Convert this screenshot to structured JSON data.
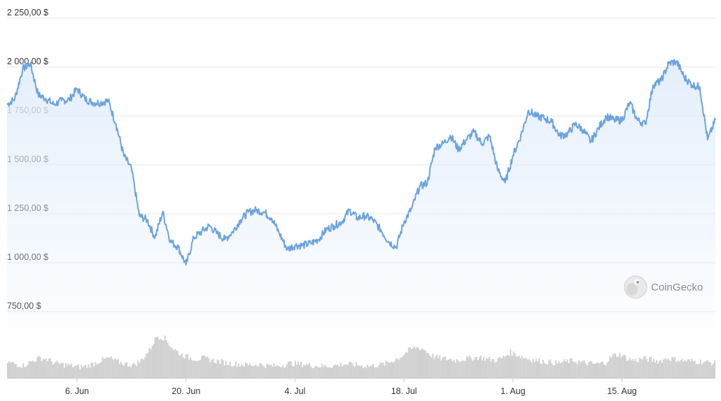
{
  "chart_data": {
    "type": "area",
    "ylim": [
      700,
      2300
    ],
    "y_ticks": [
      {
        "value": 2250,
        "label": "2 250,00 $"
      },
      {
        "value": 2000,
        "label": "2 000,00 $"
      },
      {
        "value": 1750,
        "label": "1 750,00 $"
      },
      {
        "value": 1500,
        "label": "1 500,00 $"
      },
      {
        "value": 1250,
        "label": "1 250,00 $"
      },
      {
        "value": 1000,
        "label": "1 000,00 $"
      },
      {
        "value": 750,
        "label": "750,00 $"
      }
    ],
    "x_ticks": [
      {
        "date": "2022-06-06",
        "label": "6. Jun"
      },
      {
        "date": "2022-06-20",
        "label": "20. Jun"
      },
      {
        "date": "2022-07-04",
        "label": "4. Jul"
      },
      {
        "date": "2022-07-18",
        "label": "18. Jul"
      },
      {
        "date": "2022-08-01",
        "label": "1. Aug"
      },
      {
        "date": "2022-08-15",
        "label": "15. Aug"
      }
    ],
    "x_range": [
      "2022-05-28",
      "2022-08-27"
    ],
    "grid": true,
    "line_color": "#6aa3e0",
    "fill_color": "#e3eefb",
    "volume_color": "#d0d0d0",
    "series": [
      {
        "values": [
          [
            "2022-05-28",
            1780
          ],
          [
            "2022-05-29",
            1810
          ],
          [
            "2022-05-30",
            1960
          ],
          [
            "2022-05-31",
            1990
          ],
          [
            "2022-06-01",
            1830
          ],
          [
            "2022-06-02",
            1810
          ],
          [
            "2022-06-03",
            1780
          ],
          [
            "2022-06-04",
            1800
          ],
          [
            "2022-06-05",
            1805
          ],
          [
            "2022-06-06",
            1860
          ],
          [
            "2022-06-07",
            1810
          ],
          [
            "2022-06-08",
            1790
          ],
          [
            "2022-06-09",
            1790
          ],
          [
            "2022-06-10",
            1800
          ],
          [
            "2022-06-11",
            1680
          ],
          [
            "2022-06-12",
            1520
          ],
          [
            "2022-06-13",
            1450
          ],
          [
            "2022-06-14",
            1210
          ],
          [
            "2022-06-15",
            1190
          ],
          [
            "2022-06-16",
            1100
          ],
          [
            "2022-06-17",
            1230
          ],
          [
            "2022-06-18",
            1080
          ],
          [
            "2022-06-19",
            1050
          ],
          [
            "2022-06-20",
            960
          ],
          [
            "2022-06-21",
            1100
          ],
          [
            "2022-06-22",
            1130
          ],
          [
            "2022-06-23",
            1160
          ],
          [
            "2022-06-24",
            1120
          ],
          [
            "2022-06-25",
            1090
          ],
          [
            "2022-06-26",
            1130
          ],
          [
            "2022-06-27",
            1190
          ],
          [
            "2022-06-28",
            1230
          ],
          [
            "2022-06-29",
            1240
          ],
          [
            "2022-06-30",
            1230
          ],
          [
            "2022-07-01",
            1200
          ],
          [
            "2022-07-02",
            1120
          ],
          [
            "2022-07-03",
            1040
          ],
          [
            "2022-07-04",
            1060
          ],
          [
            "2022-07-05",
            1060
          ],
          [
            "2022-07-06",
            1070
          ],
          [
            "2022-07-07",
            1090
          ],
          [
            "2022-07-08",
            1140
          ],
          [
            "2022-07-09",
            1160
          ],
          [
            "2022-07-10",
            1180
          ],
          [
            "2022-07-11",
            1240
          ],
          [
            "2022-07-12",
            1200
          ],
          [
            "2022-07-13",
            1210
          ],
          [
            "2022-07-14",
            1190
          ],
          [
            "2022-07-15",
            1140
          ],
          [
            "2022-07-16",
            1080
          ],
          [
            "2022-07-17",
            1050
          ],
          [
            "2022-07-18",
            1180
          ],
          [
            "2022-07-19",
            1250
          ],
          [
            "2022-07-20",
            1360
          ],
          [
            "2022-07-21",
            1380
          ],
          [
            "2022-07-22",
            1560
          ],
          [
            "2022-07-23",
            1580
          ],
          [
            "2022-07-24",
            1620
          ],
          [
            "2022-07-25",
            1550
          ],
          [
            "2022-07-26",
            1600
          ],
          [
            "2022-07-27",
            1640
          ],
          [
            "2022-07-28",
            1580
          ],
          [
            "2022-07-29",
            1620
          ],
          [
            "2022-07-30",
            1450
          ],
          [
            "2022-07-31",
            1380
          ],
          [
            "2022-08-01",
            1520
          ],
          [
            "2022-08-02",
            1620
          ],
          [
            "2022-08-03",
            1750
          ],
          [
            "2022-08-04",
            1720
          ],
          [
            "2022-08-05",
            1710
          ],
          [
            "2022-08-06",
            1690
          ],
          [
            "2022-08-07",
            1620
          ],
          [
            "2022-08-08",
            1630
          ],
          [
            "2022-08-09",
            1680
          ],
          [
            "2022-08-10",
            1650
          ],
          [
            "2022-08-11",
            1590
          ],
          [
            "2022-08-12",
            1660
          ],
          [
            "2022-08-13",
            1720
          ],
          [
            "2022-08-14",
            1700
          ],
          [
            "2022-08-15",
            1700
          ],
          [
            "2022-08-16",
            1790
          ],
          [
            "2022-08-17",
            1700
          ],
          [
            "2022-08-18",
            1680
          ],
          [
            "2022-08-19",
            1880
          ],
          [
            "2022-08-20",
            1900
          ],
          [
            "2022-08-21",
            1990
          ],
          [
            "2022-08-22",
            2000
          ],
          [
            "2022-08-23",
            1920
          ],
          [
            "2022-08-24",
            1880
          ],
          [
            "2022-08-25",
            1870
          ],
          [
            "2022-08-26",
            1600
          ],
          [
            "2022-08-27",
            1700
          ]
        ]
      }
    ],
    "volume_profile": [
      0.32,
      0.28,
      0.25,
      0.33,
      0.4,
      0.38,
      0.3,
      0.27,
      0.25,
      0.22,
      0.24,
      0.29,
      0.36,
      0.4,
      0.33,
      0.28,
      0.26,
      0.35,
      0.55,
      0.85,
      0.8,
      0.6,
      0.48,
      0.42,
      0.38,
      0.4,
      0.36,
      0.33,
      0.3,
      0.28,
      0.27,
      0.26,
      0.28,
      0.25,
      0.24,
      0.26,
      0.3,
      0.28,
      0.27,
      0.25,
      0.24,
      0.24,
      0.26,
      0.28,
      0.27,
      0.25,
      0.24,
      0.26,
      0.28,
      0.35,
      0.42,
      0.55,
      0.62,
      0.58,
      0.45,
      0.4,
      0.38,
      0.36,
      0.38,
      0.4,
      0.42,
      0.38,
      0.36,
      0.4,
      0.52,
      0.46,
      0.4,
      0.36,
      0.34,
      0.32,
      0.3,
      0.33,
      0.35,
      0.31,
      0.29,
      0.28,
      0.3,
      0.45,
      0.48,
      0.38,
      0.35,
      0.4,
      0.36,
      0.34,
      0.4,
      0.38,
      0.35,
      0.34,
      0.33,
      0.32,
      0.3
    ]
  },
  "watermark": {
    "logo": "coingecko-logo",
    "text": "CoinGecko"
  }
}
